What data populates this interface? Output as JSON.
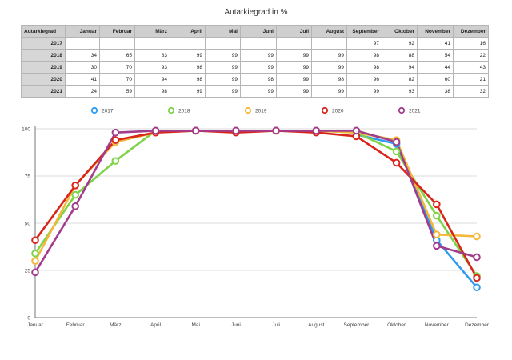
{
  "chart_data": {
    "type": "line",
    "title": "Autarkiegrad in %",
    "table_corner_label": "Autarkiegrad",
    "categories": [
      "Januar",
      "Februar",
      "März",
      "April",
      "Mai",
      "Juni",
      "Juli",
      "August",
      "September",
      "Oktober",
      "November",
      "Dezember"
    ],
    "yticks": [
      "0",
      "25",
      "50",
      "75",
      "100"
    ],
    "ylim": [
      0,
      100
    ],
    "grid": true,
    "legend_position": "top",
    "series": [
      {
        "name": "2017",
        "color": "#2e9bf0",
        "values": [
          null,
          null,
          null,
          null,
          null,
          null,
          null,
          null,
          97,
          92,
          41,
          16
        ]
      },
      {
        "name": "2018",
        "color": "#7ed348",
        "values": [
          34,
          65,
          83,
          99,
          99,
          99,
          99,
          99,
          98,
          88,
          54,
          22
        ]
      },
      {
        "name": "2019",
        "color": "#f3b83a",
        "values": [
          30,
          70,
          93,
          98,
          99,
          99,
          99,
          99,
          98,
          94,
          44,
          43
        ]
      },
      {
        "name": "2020",
        "color": "#d7261b",
        "values": [
          41,
          70,
          94,
          98,
          99,
          98,
          99,
          98,
          96,
          82,
          60,
          21
        ]
      },
      {
        "name": "2021",
        "color": "#a23c8d",
        "values": [
          24,
          59,
          98,
          99,
          99,
          99,
          99,
          99,
          99,
          93,
          38,
          32
        ]
      }
    ]
  }
}
